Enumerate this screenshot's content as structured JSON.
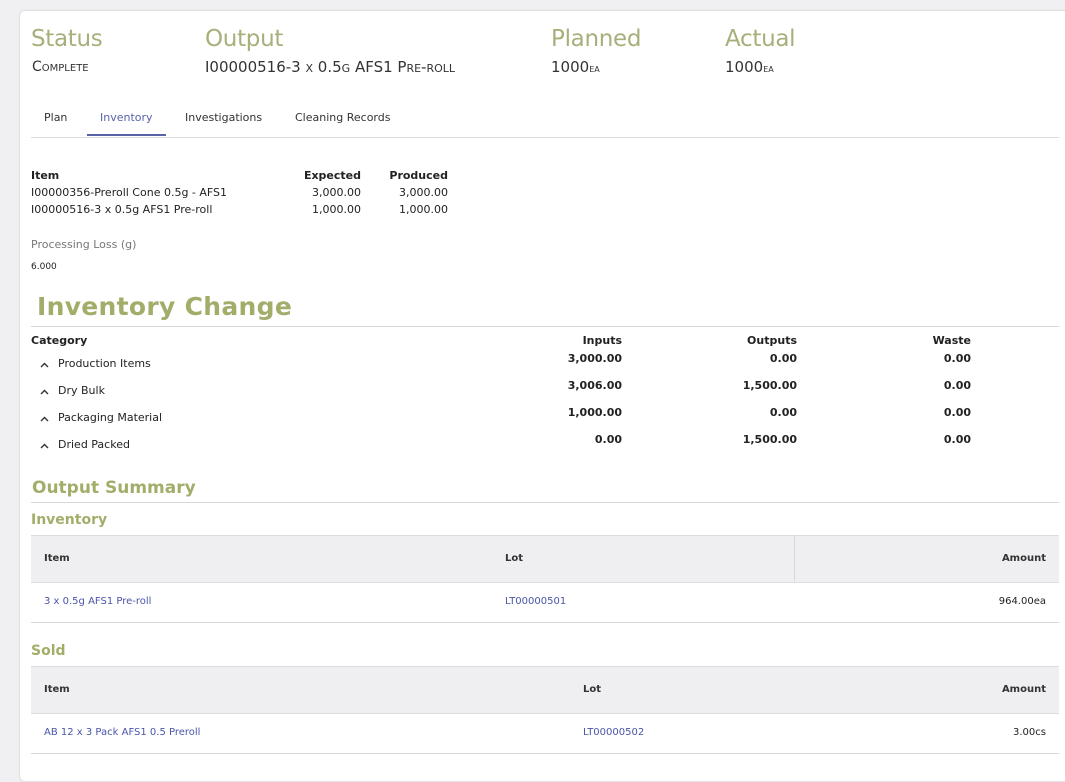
{
  "status": {
    "label": "Status",
    "value": "Complete"
  },
  "output": {
    "label": "Output",
    "value": "I00000516-3 x 0.5g AFS1 Pre-roll"
  },
  "planned": {
    "label": "Planned",
    "value": "1000",
    "unit": "ea"
  },
  "actual": {
    "label": "Actual",
    "value": "1000",
    "unit": "ea"
  },
  "tabs": [
    {
      "label": "Plan"
    },
    {
      "label": "Inventory",
      "active": true
    },
    {
      "label": "Investigations"
    },
    {
      "label": "Cleaning Records"
    }
  ],
  "items_table": {
    "headers": [
      "Item",
      "Expected",
      "Produced"
    ],
    "rows": [
      {
        "item": "I00000356-Preroll Cone 0.5g - AFS1",
        "expected": "3,000.00",
        "produced": "3,000.00"
      },
      {
        "item": "I00000516-3 x 0.5g AFS1 Pre-roll",
        "expected": "1,000.00",
        "produced": "1,000.00"
      }
    ]
  },
  "processing_loss": {
    "label": "Processing Loss (g)",
    "value": "6.000"
  },
  "inventory_change": {
    "title": "Inventory Change",
    "headers": [
      "Category",
      "Inputs",
      "Outputs",
      "Waste"
    ],
    "rows": [
      {
        "category": "Production Items",
        "inputs": "3,000.00",
        "outputs": "0.00",
        "waste": "0.00"
      },
      {
        "category": "Dry Bulk",
        "inputs": "3,006.00",
        "outputs": "1,500.00",
        "waste": "0.00"
      },
      {
        "category": "Packaging Material",
        "inputs": "1,000.00",
        "outputs": "0.00",
        "waste": "0.00"
      },
      {
        "category": "Dried Packed",
        "inputs": "0.00",
        "outputs": "1,500.00",
        "waste": "0.00"
      }
    ]
  },
  "output_summary": {
    "title": "Output Summary",
    "inventory": {
      "title": "Inventory",
      "headers": [
        "Item",
        "Lot",
        "Amount"
      ],
      "rows": [
        {
          "item": "3 x 0.5g AFS1 Pre-roll",
          "lot": "LT00000501",
          "amount": "964.00ea"
        }
      ]
    },
    "sold": {
      "title": "Sold",
      "headers": [
        "Item",
        "Lot",
        "Amount"
      ],
      "rows": [
        {
          "item": "AB 12 x 3 Pack AFS1 0.5 Preroll",
          "lot": "LT00000502",
          "amount": "3.00cs"
        }
      ]
    }
  },
  "colors": {
    "accent_olive": "#a3ad6a",
    "tab_active": "#5a62a8",
    "link": "#4a55a8"
  }
}
